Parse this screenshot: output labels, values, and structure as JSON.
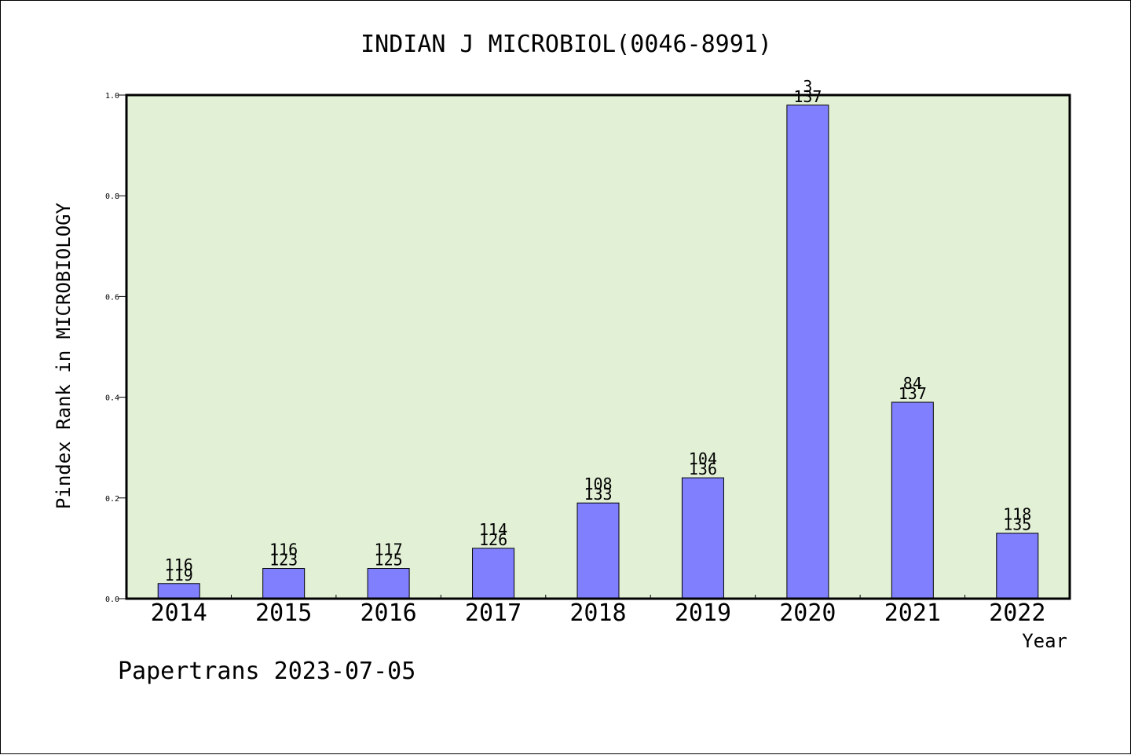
{
  "chart_data": {
    "type": "bar",
    "title": "INDIAN J MICROBIOL(0046-8991)",
    "xlabel": "Year",
    "ylabel": "Pindex Rank in MICROBIOLOGY",
    "ylim": [
      0,
      1.0
    ],
    "yticks": [
      "0.0",
      "0.2",
      "0.4",
      "0.6",
      "0.8",
      "1.0"
    ],
    "grid": false,
    "categories": [
      "2014",
      "2015",
      "2016",
      "2017",
      "2018",
      "2019",
      "2020",
      "2021",
      "2022"
    ],
    "values": [
      0.03,
      0.06,
      0.06,
      0.1,
      0.19,
      0.24,
      0.98,
      0.39,
      0.13
    ],
    "rank_labels": [
      "116",
      "116",
      "117",
      "114",
      "108",
      "104",
      "3",
      "84",
      "118"
    ],
    "total_labels": [
      "119",
      "123",
      "125",
      "126",
      "133",
      "136",
      "137",
      "137",
      "135"
    ],
    "colors": {
      "plot_background": "#e2f0d6",
      "bar_fill": "#8080ff",
      "bar_stroke": "#000000"
    }
  },
  "footer": {
    "note": "Papertrans 2023-07-05"
  }
}
